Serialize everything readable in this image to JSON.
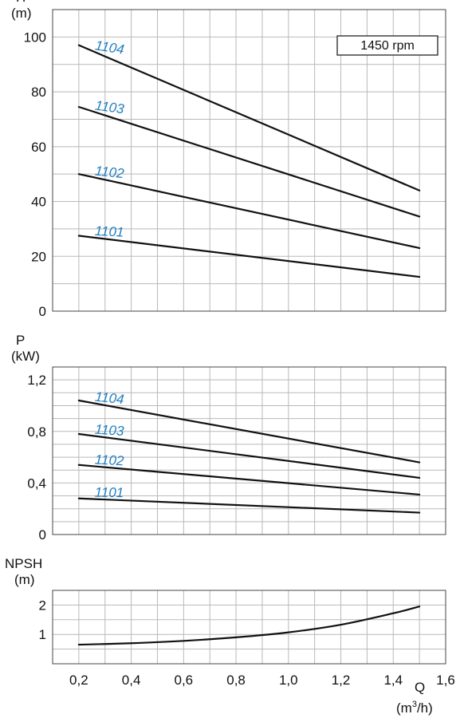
{
  "chart_data": [
    {
      "type": "line",
      "id": "head",
      "ylabel": "H",
      "yunit": "(m)",
      "xlim": [
        0.1,
        1.6
      ],
      "ylim": [
        0,
        110
      ],
      "yticks": [
        0,
        20,
        40,
        60,
        80,
        100
      ],
      "yticklabels": [
        "0",
        "20",
        "40",
        "60",
        "80",
        "100"
      ],
      "grid": true,
      "annotation": "1450 rpm",
      "series": [
        {
          "name": "1104",
          "x": [
            0.2,
            1.5
          ],
          "y": [
            97,
            44
          ]
        },
        {
          "name": "1103",
          "x": [
            0.2,
            1.5
          ],
          "y": [
            74.5,
            34.5
          ]
        },
        {
          "name": "1102",
          "x": [
            0.2,
            1.5
          ],
          "y": [
            50,
            23
          ]
        },
        {
          "name": "1101",
          "x": [
            0.2,
            1.5
          ],
          "y": [
            27.5,
            12.5
          ]
        }
      ]
    },
    {
      "type": "line",
      "id": "power",
      "ylabel": "P",
      "yunit": "(kW)",
      "xlim": [
        0.1,
        1.6
      ],
      "ylim": [
        0,
        1.3
      ],
      "yticks": [
        0,
        0.4,
        0.8,
        1.2
      ],
      "yticklabels": [
        "0",
        "0,4",
        "0,8",
        "1,2"
      ],
      "grid": true,
      "series": [
        {
          "name": "1104",
          "x": [
            0.2,
            1.5
          ],
          "y": [
            1.04,
            0.56
          ]
        },
        {
          "name": "1103",
          "x": [
            0.2,
            1.5
          ],
          "y": [
            0.78,
            0.44
          ]
        },
        {
          "name": "1102",
          "x": [
            0.2,
            1.5
          ],
          "y": [
            0.54,
            0.31
          ]
        },
        {
          "name": "1101",
          "x": [
            0.2,
            1.5
          ],
          "y": [
            0.28,
            0.17
          ]
        }
      ]
    },
    {
      "type": "line",
      "id": "npsh",
      "ylabel": "NPSH",
      "yunit": "(m)",
      "xlim": [
        0.1,
        1.6
      ],
      "ylim": [
        0,
        2.5
      ],
      "yticks": [
        1,
        2
      ],
      "yticklabels": [
        "1",
        "2"
      ],
      "grid": true,
      "xlabel": "Q",
      "xunit_base": "(m",
      "xunit_sup": "3",
      "xunit_end": "/h)",
      "xticks": [
        0.2,
        0.4,
        0.6,
        0.8,
        1.0,
        1.2,
        1.4,
        1.6
      ],
      "xticklabels": [
        "0,2",
        "0,4",
        "0,6",
        "0,8",
        "1,0",
        "1,2",
        "1,4",
        "1,6"
      ],
      "series": [
        {
          "x": [
            0.2,
            0.4,
            0.6,
            0.8,
            1.0,
            1.2,
            1.4,
            1.5
          ],
          "y": [
            0.65,
            0.7,
            0.78,
            0.9,
            1.07,
            1.33,
            1.72,
            1.95
          ]
        }
      ]
    }
  ]
}
